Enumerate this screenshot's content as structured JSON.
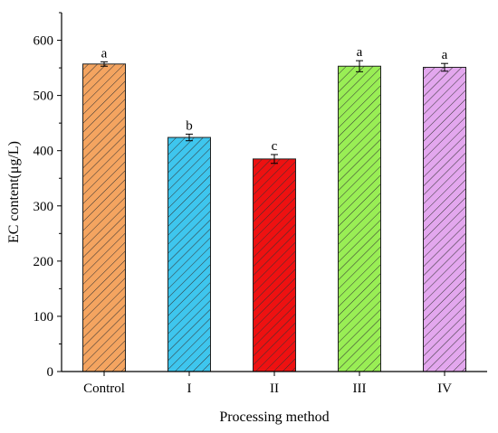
{
  "chart_data": {
    "type": "bar",
    "title": "",
    "xlabel": "Processing method",
    "ylabel": "EC content(μg/L)",
    "categories": [
      "Control",
      "I",
      "II",
      "III",
      "IV"
    ],
    "values": [
      557,
      424,
      385,
      553,
      551
    ],
    "errors": [
      4,
      6,
      8,
      10,
      7
    ],
    "significance": [
      "a",
      "b",
      "c",
      "a",
      "a"
    ],
    "colors": [
      "#F4A460",
      "#3EC6EE",
      "#EE1111",
      "#99EE55",
      "#E3A7EE"
    ],
    "ylim": [
      0,
      650
    ],
    "yticks": [
      0,
      100,
      200,
      300,
      400,
      500,
      600
    ],
    "bar_pattern": "diagonal-hatch",
    "grid": false,
    "legend": "none"
  }
}
